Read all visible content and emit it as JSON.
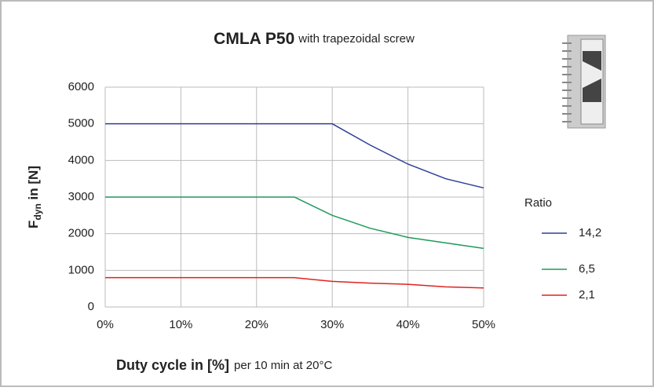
{
  "chart_data": {
    "type": "line",
    "title": "CMLA P50",
    "subtitle": "with trapezoidal screw",
    "x_label": "Duty cycle in [%]",
    "x_label_note": "per 10 min at 20°C",
    "y_label": {
      "main": "F",
      "sub": "dyn",
      "rest": " in [N]"
    },
    "legend_title": "Ratio",
    "x": [
      0,
      5,
      10,
      15,
      20,
      25,
      30,
      35,
      40,
      45,
      50
    ],
    "series": [
      {
        "name": "14,2",
        "color": "#2e3f95",
        "values": [
          5000,
          5000,
          5000,
          5000,
          5000,
          5000,
          5000,
          4420,
          3900,
          3500,
          3250
        ]
      },
      {
        "name": "6,5",
        "color": "#1f9a5a",
        "values": [
          3000,
          3000,
          3000,
          3000,
          3000,
          3000,
          2500,
          2150,
          1900,
          1750,
          1600
        ]
      },
      {
        "name": "2,1",
        "color": "#e0221f",
        "values": [
          800,
          800,
          800,
          800,
          800,
          800,
          700,
          650,
          620,
          550,
          520
        ]
      }
    ],
    "xlim": [
      0,
      50
    ],
    "xticks": [
      {
        "value": 0,
        "label": "0%"
      },
      {
        "value": 10,
        "label": "10%"
      },
      {
        "value": 20,
        "label": "20%"
      },
      {
        "value": 30,
        "label": "30%"
      },
      {
        "value": 40,
        "label": "40%"
      },
      {
        "value": 50,
        "label": "50%"
      }
    ],
    "ylim": [
      0,
      6000
    ],
    "yticks": [
      0,
      1000,
      2000,
      3000,
      4000,
      5000,
      6000
    ],
    "grid": true
  }
}
